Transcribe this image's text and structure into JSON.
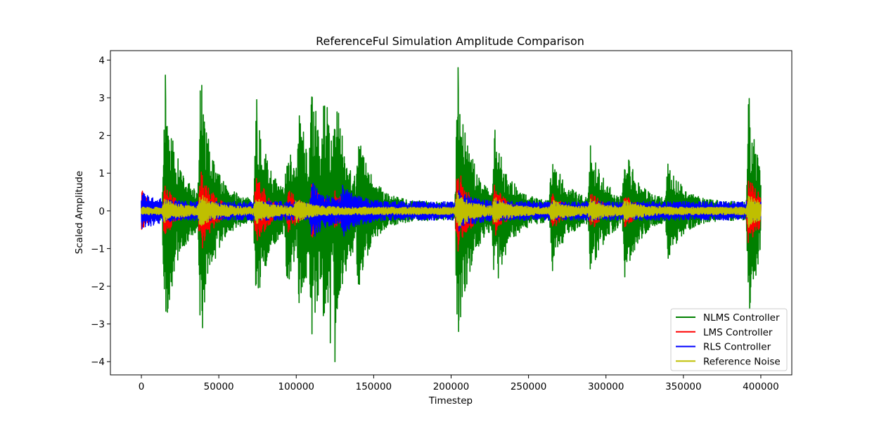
{
  "chart_data": {
    "type": "line",
    "title": "ReferenceFul Simulation Amplitude Comparison",
    "xlabel": "Timestep",
    "ylabel": "Scaled Amplitude",
    "xlim": [
      -20000,
      420000
    ],
    "ylim": [
      -4.35,
      4.25
    ],
    "xticks": [
      0,
      50000,
      100000,
      150000,
      200000,
      250000,
      300000,
      350000,
      400000
    ],
    "xtick_labels": [
      "0",
      "50000",
      "100000",
      "150000",
      "200000",
      "250000",
      "300000",
      "350000",
      "400000"
    ],
    "yticks": [
      -4,
      -3,
      -2,
      -1,
      0,
      1,
      2,
      3,
      4
    ],
    "ytick_labels": [
      "−4",
      "−3",
      "−2",
      "−1",
      "0",
      "1",
      "2",
      "3",
      "4"
    ],
    "grid": false,
    "legend_position": "lower-right",
    "x_range": [
      0,
      400000
    ],
    "series": [
      {
        "name": "NLMS Controller",
        "color": "#008000",
        "baseline": 0.25,
        "bursts": [
          [
            15000,
            3.0
          ],
          [
            38000,
            2.8
          ],
          [
            74000,
            2.5
          ],
          [
            94000,
            1.6
          ],
          [
            102000,
            1.8
          ],
          [
            110000,
            2.2
          ],
          [
            118000,
            1.8
          ],
          [
            125000,
            1.6
          ],
          [
            140000,
            1.3
          ],
          [
            204000,
            3.4
          ],
          [
            228000,
            1.8
          ],
          [
            265000,
            1.4
          ],
          [
            290000,
            1.5
          ],
          [
            312000,
            1.5
          ],
          [
            340000,
            1.1
          ],
          [
            392000,
            2.6
          ]
        ],
        "extremes": [
          [
            15500,
            3.6
          ],
          [
            39000,
            3.33
          ],
          [
            74500,
            2.95
          ],
          [
            122000,
            -3.5
          ],
          [
            125000,
            -4.0
          ],
          [
            204500,
            3.8
          ],
          [
            205000,
            -2.9
          ],
          [
            39500,
            -3.1
          ],
          [
            392500,
            2.98
          ],
          [
            392800,
            -2.6
          ]
        ]
      },
      {
        "name": "LMS Controller",
        "color": "#ff0000",
        "baseline": 0.02,
        "bursts": [
          [
            0,
            0.55
          ],
          [
            15000,
            0.6
          ],
          [
            38000,
            1.1
          ],
          [
            74000,
            1.0
          ],
          [
            95000,
            0.5
          ],
          [
            110000,
            0.6
          ],
          [
            125000,
            0.4
          ],
          [
            204000,
            1.2
          ],
          [
            228000,
            0.6
          ],
          [
            265000,
            0.5
          ],
          [
            290000,
            0.5
          ],
          [
            312000,
            0.4
          ],
          [
            392000,
            1.0
          ]
        ],
        "extremes": []
      },
      {
        "name": "RLS Controller",
        "color": "#0000ff",
        "baseline": 0.25,
        "bursts": [
          [
            0,
            0.3
          ],
          [
            110000,
            0.55
          ],
          [
            130000,
            0.4
          ],
          [
            205000,
            0.3
          ]
        ],
        "extremes": []
      },
      {
        "name": "Reference Noise",
        "color": "#bfbf00",
        "baseline": 0.1,
        "bursts": [
          [
            15000,
            0.25
          ],
          [
            38000,
            0.35
          ],
          [
            74000,
            0.25
          ],
          [
            100000,
            0.2
          ],
          [
            204000,
            0.4
          ],
          [
            228000,
            0.25
          ],
          [
            265000,
            0.2
          ],
          [
            290000,
            0.2
          ],
          [
            312000,
            0.2
          ],
          [
            392000,
            0.35
          ]
        ],
        "extremes": []
      }
    ]
  }
}
